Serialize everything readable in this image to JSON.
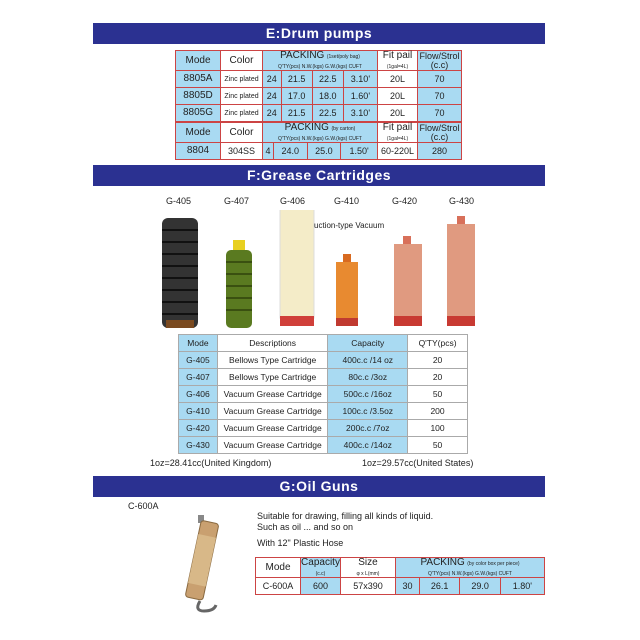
{
  "sections": {
    "drum": "E:Drum pumps",
    "grease": "F:Grease Cartridges",
    "oil": "G:Oil Guns"
  },
  "drum": {
    "table1": {
      "headers": {
        "mode": "Mode",
        "color": "Color",
        "packing": "PACKING",
        "packing_note": "(1set/poly bag)",
        "packing_sub": "Q'TY(pcs) N.W.(kgs) G.W.(kgs) CUFT",
        "fit": "Fit pail",
        "fit_sub": "(1gal=4L)",
        "flow": "Flow/Strol",
        "flow_sub": "(c.c)"
      },
      "rows": [
        {
          "mode": "8805A",
          "color": "Zinc plated",
          "qty": "24",
          "nw": "21.5",
          "gw": "22.5",
          "cuft": "3.10'",
          "fit": "20L",
          "flow": "70"
        },
        {
          "mode": "8805D",
          "color": "Zinc plated",
          "qty": "24",
          "nw": "17.0",
          "gw": "18.0",
          "cuft": "1.60'",
          "fit": "20L",
          "flow": "70"
        },
        {
          "mode": "8805G",
          "color": "Zinc plated",
          "qty": "24",
          "nw": "21.5",
          "gw": "22.5",
          "cuft": "3.10'",
          "fit": "20L",
          "flow": "70"
        }
      ]
    },
    "table2": {
      "headers": {
        "mode": "Mode",
        "color": "Color",
        "packing": "PACKING",
        "packing_note": "(by carton)",
        "packing_sub": "Q'TY(pcs) N.W.(kgs) G.W.(kgs) CUFT",
        "fit": "Fit pail",
        "fit_sub": "(1gal=4L)",
        "flow": "Flow/Strol",
        "flow_sub": "(c.c)"
      },
      "rows": [
        {
          "mode": "8804",
          "color": "304SS",
          "qty": "4",
          "nw": "24.0",
          "gw": "25.0",
          "cuft": "1.50'",
          "fit": "60-220L",
          "flow": "280"
        }
      ]
    }
  },
  "grease": {
    "labels": [
      "G-405",
      "G-407",
      "G-406",
      "G-410",
      "G-420",
      "G-430"
    ],
    "suction_note": "suction-type Vacuum",
    "headers": [
      "Mode",
      "Descriptions",
      "Capacity",
      "Q'TY(pcs)"
    ],
    "rows": [
      [
        "G-405",
        "Bellows Type Cartridge",
        "400c.c /14 oz",
        "20"
      ],
      [
        "G-407",
        "Bellows Type Cartridge",
        "80c.c /3oz",
        "20"
      ],
      [
        "G-406",
        "Vacuum Grease Cartridge",
        "500c.c /16oz",
        "50"
      ],
      [
        "G-410",
        "Vacuum Grease Cartridge",
        "100c.c /3.5oz",
        "200"
      ],
      [
        "G-420",
        "Vacuum Grease Cartridge",
        "200c.c /7oz",
        "100"
      ],
      [
        "G-430",
        "Vacuum Grease Cartridge",
        "400c.c /14oz",
        "50"
      ]
    ],
    "note_uk": "1oz=28.41cc(United Kingdom)",
    "note_us": "1oz=29.57cc(United States)"
  },
  "oil": {
    "label": "C-600A",
    "desc1": "Suitable for drawing, filling all kinds of liquid.",
    "desc2": "Such as oil ... and so on",
    "hose": "With 12\" Plastic Hose",
    "headers": {
      "mode": "Mode",
      "capacity": "Capacity",
      "capacity_sub": "(c.c)",
      "size": "Size",
      "size_sub": "φ x L(mm)",
      "packing": "PACKING",
      "packing_note": "(by color box per piece)",
      "packing_sub": "Q'TY(pcs) N.W.(kgs) G.W.(kgs) CUFT"
    },
    "row": {
      "mode": "C-600A",
      "capacity": "600",
      "size": "57x390",
      "qty": "30",
      "nw": "26.1",
      "gw": "29.0",
      "cuft": "1.80'"
    }
  },
  "colors": {
    "header_bar": "#2b3191",
    "cell_blue": "#a9daf2"
  }
}
